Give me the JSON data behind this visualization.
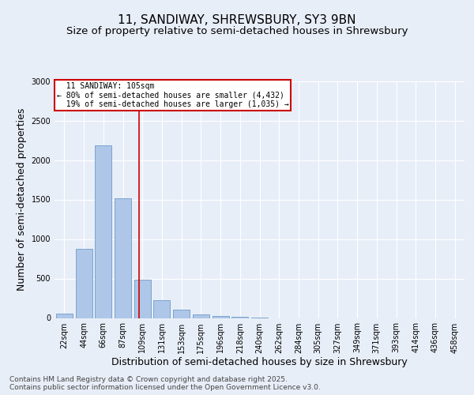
{
  "title_line1": "11, SANDIWAY, SHREWSBURY, SY3 9BN",
  "title_line2": "Size of property relative to semi-detached houses in Shrewsbury",
  "xlabel": "Distribution of semi-detached houses by size in Shrewsbury",
  "ylabel": "Number of semi-detached properties",
  "footnote": "Contains HM Land Registry data © Crown copyright and database right 2025.\nContains public sector information licensed under the Open Government Licence v3.0.",
  "categories": [
    "22sqm",
    "44sqm",
    "66sqm",
    "87sqm",
    "109sqm",
    "131sqm",
    "153sqm",
    "175sqm",
    "196sqm",
    "218sqm",
    "240sqm",
    "262sqm",
    "284sqm",
    "305sqm",
    "327sqm",
    "349sqm",
    "371sqm",
    "393sqm",
    "414sqm",
    "436sqm",
    "458sqm"
  ],
  "bar_values": [
    60,
    880,
    2190,
    1520,
    490,
    230,
    110,
    50,
    30,
    20,
    10,
    0,
    0,
    0,
    0,
    0,
    0,
    0,
    0,
    0,
    0
  ],
  "bar_color": "#aec6e8",
  "bar_edge_color": "#5a8fc2",
  "property_label": "11 SANDIWAY: 105sqm",
  "smaller_pct": 80,
  "smaller_count": 4432,
  "larger_pct": 19,
  "larger_count": 1035,
  "vline_color": "#cc0000",
  "annotation_box_color": "#cc0000",
  "vline_x": 3.82,
  "ylim": [
    0,
    3000
  ],
  "yticks": [
    0,
    500,
    1000,
    1500,
    2000,
    2500,
    3000
  ],
  "background_color": "#e8eef8",
  "plot_bg_color": "#e8eef8",
  "grid_color": "#ffffff",
  "title_fontsize": 11,
  "subtitle_fontsize": 9.5,
  "axis_label_fontsize": 9,
  "tick_fontsize": 7,
  "footnote_fontsize": 6.5
}
